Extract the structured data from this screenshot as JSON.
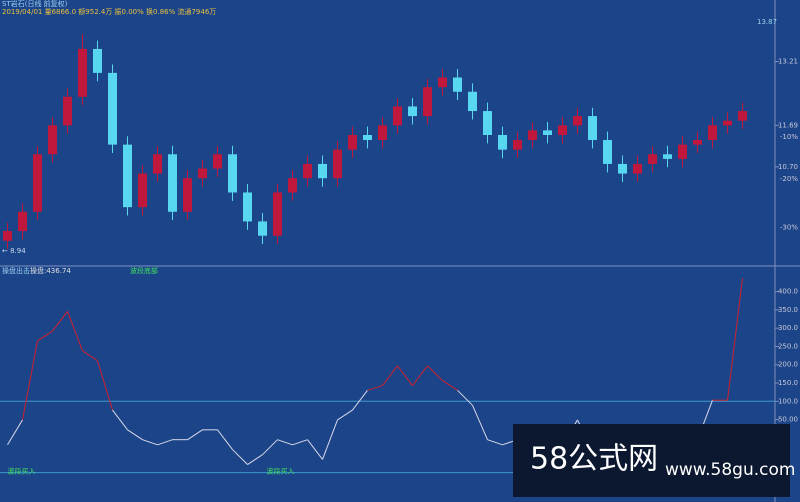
{
  "chart_data": [
    {
      "type": "candlestick",
      "title": "ST岩石(日线 前复权)",
      "subtitle": "2019/04/01 量6866.0 额952.4万 振0.00% 换0.86% 流通7946万",
      "open": [
        8.94,
        9.17,
        9.63,
        11.0,
        11.69,
        12.37,
        13.51,
        12.94,
        11.23,
        9.74,
        10.54,
        11.0,
        9.63,
        10.43,
        10.66,
        11.0,
        10.09,
        9.4,
        9.06,
        10.09,
        10.43,
        10.77,
        10.43,
        11.11,
        11.46,
        11.34,
        11.69,
        12.14,
        11.91,
        12.6,
        12.83,
        12.49,
        12.03,
        11.46,
        11.11,
        11.34,
        11.57,
        11.46,
        11.69,
        11.91,
        11.34,
        10.77,
        10.54,
        10.77,
        11.0,
        10.89,
        11.23,
        11.34,
        11.69,
        11.8
      ],
      "high": [
        9.37,
        9.83,
        11.2,
        11.89,
        12.57,
        13.87,
        13.71,
        13.14,
        11.43,
        10.74,
        11.2,
        11.2,
        10.63,
        10.86,
        11.2,
        11.2,
        10.29,
        9.6,
        10.29,
        10.63,
        10.97,
        10.97,
        11.31,
        11.66,
        11.66,
        11.89,
        12.34,
        12.34,
        12.8,
        13.03,
        13.03,
        12.69,
        12.23,
        11.66,
        11.54,
        11.77,
        11.77,
        11.89,
        12.11,
        12.11,
        11.54,
        10.97,
        10.97,
        11.2,
        11.2,
        11.43,
        11.54,
        11.89,
        12.0,
        12.23
      ],
      "low": [
        8.74,
        8.97,
        9.43,
        10.8,
        11.49,
        12.17,
        12.74,
        11.03,
        9.54,
        9.54,
        10.34,
        9.43,
        9.43,
        10.23,
        10.46,
        9.89,
        9.2,
        8.86,
        8.86,
        9.89,
        10.23,
        10.23,
        10.23,
        10.91,
        11.14,
        11.14,
        11.49,
        11.71,
        11.71,
        12.4,
        12.29,
        11.83,
        11.26,
        10.91,
        10.91,
        11.14,
        11.26,
        11.26,
        11.49,
        11.14,
        10.57,
        10.34,
        10.34,
        10.57,
        10.69,
        10.69,
        11.03,
        11.14,
        11.49,
        11.6
      ],
      "close": [
        9.17,
        9.63,
        11.0,
        11.69,
        12.37,
        13.51,
        12.94,
        11.23,
        9.74,
        10.54,
        11.0,
        9.63,
        10.43,
        10.66,
        11.0,
        10.09,
        9.4,
        9.06,
        10.09,
        10.43,
        10.77,
        10.43,
        11.11,
        11.46,
        11.34,
        11.69,
        12.14,
        11.91,
        12.6,
        12.83,
        12.49,
        12.03,
        11.46,
        11.11,
        11.34,
        11.57,
        11.46,
        11.69,
        11.91,
        11.34,
        10.77,
        10.54,
        10.77,
        11.0,
        10.89,
        11.23,
        11.34,
        11.69,
        11.8,
        12.03
      ],
      "up_color": "#c0183c",
      "down_color": "#58d8f0",
      "ylim": [
        8.6,
        14.2
      ],
      "yticks": [
        13.21,
        11.69,
        {
          "value": 10.7,
          "label": "10.70"
        }
      ],
      "pct_ticks": [
        {
          "value": 11.55,
          "label": "-10%"
        },
        {
          "value": 10.55,
          "label": "-20%"
        },
        {
          "value": 9.4,
          "label": "-30%"
        }
      ],
      "annotations": [
        "← 8.94",
        "13.87"
      ]
    },
    {
      "type": "line",
      "title": "操盘出击",
      "subtitle": "操盘:436.74",
      "legend": "波段底部",
      "series": [
        {
          "name": "操盘",
          "color": "#d8d8e8",
          "high_color": "#d02030",
          "values": [
            -19,
            49,
            265,
            292,
            346,
            238,
            211,
            76,
            22,
            -5,
            -19,
            -5,
            -5,
            22,
            22,
            -32,
            -73,
            -46,
            -5,
            -19,
            -5,
            -59,
            49,
            76,
            130,
            143,
            197,
            143,
            197,
            157,
            130,
            89,
            -5,
            -19,
            -5,
            -32,
            -46,
            -19,
            49,
            -32,
            -86,
            -73,
            -59,
            -86,
            -46,
            -59,
            -5,
            103,
            103,
            436.74
          ]
        }
      ],
      "ylim": [
        -170,
        440
      ],
      "yticks": [
        {
          "value": 400,
          "label": "400.0"
        },
        {
          "value": 350,
          "label": "350.0"
        },
        {
          "value": 300,
          "label": "300.0"
        },
        {
          "value": 250,
          "label": "250.0"
        },
        {
          "value": 200,
          "label": "200.0"
        },
        {
          "value": 150,
          "label": "150.0"
        },
        {
          "value": 100,
          "label": "100.0"
        },
        {
          "value": 50,
          "label": "50.00"
        }
      ],
      "reference_lines": [
        100,
        -95
      ],
      "annotations": [
        "波段买入",
        "波段买入"
      ]
    },
    {
      "type": "watermark",
      "title": "58公式网",
      "subtitle": "www.58gu.com"
    }
  ]
}
